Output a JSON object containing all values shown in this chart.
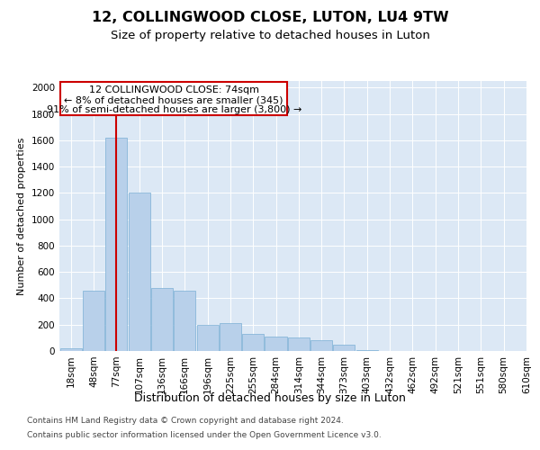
{
  "title": "12, COLLINGWOOD CLOSE, LUTON, LU4 9TW",
  "subtitle": "Size of property relative to detached houses in Luton",
  "xlabel": "Distribution of detached houses by size in Luton",
  "ylabel": "Number of detached properties",
  "bins": [
    "18sqm",
    "48sqm",
    "77sqm",
    "107sqm",
    "136sqm",
    "166sqm",
    "196sqm",
    "225sqm",
    "255sqm",
    "284sqm",
    "314sqm",
    "344sqm",
    "373sqm",
    "403sqm",
    "432sqm",
    "462sqm",
    "492sqm",
    "521sqm",
    "551sqm",
    "580sqm",
    "610sqm"
  ],
  "values": [
    20,
    460,
    1620,
    1200,
    480,
    460,
    200,
    210,
    130,
    110,
    100,
    80,
    50,
    10,
    0,
    0,
    0,
    0,
    0,
    0
  ],
  "bar_color": "#b8d0ea",
  "bar_edge_color": "#7aafd4",
  "vline_color": "#cc0000",
  "annotation_line1": "12 COLLINGWOOD CLOSE: 74sqm",
  "annotation_line2": "← 8% of detached houses are smaller (345)",
  "annotation_line3": "91% of semi-detached houses are larger (3,800) →",
  "annotation_box_facecolor": "#ffffff",
  "annotation_box_edgecolor": "#cc0000",
  "ylim_max": 2050,
  "yticks": [
    0,
    200,
    400,
    600,
    800,
    1000,
    1200,
    1400,
    1600,
    1800,
    2000
  ],
  "bg_color": "#dce8f5",
  "grid_color": "#ffffff",
  "footer_line1": "Contains HM Land Registry data © Crown copyright and database right 2024.",
  "footer_line2": "Contains public sector information licensed under the Open Government Licence v3.0.",
  "title_fontsize": 11.5,
  "subtitle_fontsize": 9.5,
  "xlabel_fontsize": 9,
  "ylabel_fontsize": 8,
  "tick_fontsize": 7.5,
  "annotation_fontsize": 8,
  "footer_fontsize": 6.5
}
